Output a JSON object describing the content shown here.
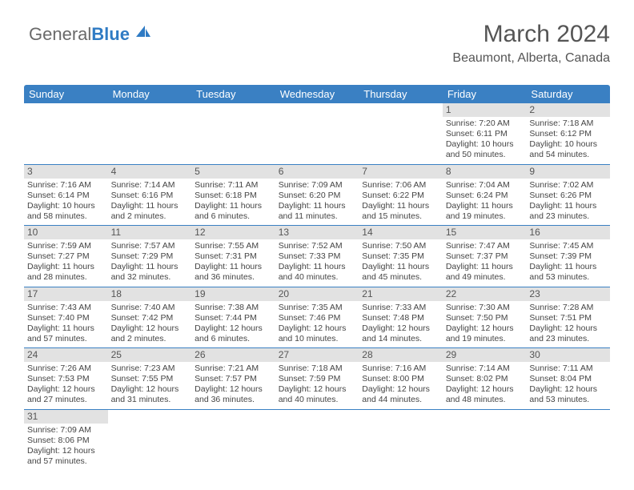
{
  "brand": {
    "part1": "General",
    "part2": "Blue"
  },
  "title": "March 2024",
  "location": "Beaumont, Alberta, Canada",
  "colors": {
    "header_bg": "#3a80c3",
    "header_text": "#ffffff",
    "daynum_bg": "#e2e2e2",
    "rule": "#3a80c3",
    "body_text": "#444444"
  },
  "daynames": [
    "Sunday",
    "Monday",
    "Tuesday",
    "Wednesday",
    "Thursday",
    "Friday",
    "Saturday"
  ],
  "layout": {
    "first_weekday_index": 5,
    "days_in_month": 31
  },
  "days": {
    "1": {
      "sunrise": "Sunrise: 7:20 AM",
      "sunset": "Sunset: 6:11 PM",
      "daylight1": "Daylight: 10 hours",
      "daylight2": "and 50 minutes."
    },
    "2": {
      "sunrise": "Sunrise: 7:18 AM",
      "sunset": "Sunset: 6:12 PM",
      "daylight1": "Daylight: 10 hours",
      "daylight2": "and 54 minutes."
    },
    "3": {
      "sunrise": "Sunrise: 7:16 AM",
      "sunset": "Sunset: 6:14 PM",
      "daylight1": "Daylight: 10 hours",
      "daylight2": "and 58 minutes."
    },
    "4": {
      "sunrise": "Sunrise: 7:14 AM",
      "sunset": "Sunset: 6:16 PM",
      "daylight1": "Daylight: 11 hours",
      "daylight2": "and 2 minutes."
    },
    "5": {
      "sunrise": "Sunrise: 7:11 AM",
      "sunset": "Sunset: 6:18 PM",
      "daylight1": "Daylight: 11 hours",
      "daylight2": "and 6 minutes."
    },
    "6": {
      "sunrise": "Sunrise: 7:09 AM",
      "sunset": "Sunset: 6:20 PM",
      "daylight1": "Daylight: 11 hours",
      "daylight2": "and 11 minutes."
    },
    "7": {
      "sunrise": "Sunrise: 7:06 AM",
      "sunset": "Sunset: 6:22 PM",
      "daylight1": "Daylight: 11 hours",
      "daylight2": "and 15 minutes."
    },
    "8": {
      "sunrise": "Sunrise: 7:04 AM",
      "sunset": "Sunset: 6:24 PM",
      "daylight1": "Daylight: 11 hours",
      "daylight2": "and 19 minutes."
    },
    "9": {
      "sunrise": "Sunrise: 7:02 AM",
      "sunset": "Sunset: 6:26 PM",
      "daylight1": "Daylight: 11 hours",
      "daylight2": "and 23 minutes."
    },
    "10": {
      "sunrise": "Sunrise: 7:59 AM",
      "sunset": "Sunset: 7:27 PM",
      "daylight1": "Daylight: 11 hours",
      "daylight2": "and 28 minutes."
    },
    "11": {
      "sunrise": "Sunrise: 7:57 AM",
      "sunset": "Sunset: 7:29 PM",
      "daylight1": "Daylight: 11 hours",
      "daylight2": "and 32 minutes."
    },
    "12": {
      "sunrise": "Sunrise: 7:55 AM",
      "sunset": "Sunset: 7:31 PM",
      "daylight1": "Daylight: 11 hours",
      "daylight2": "and 36 minutes."
    },
    "13": {
      "sunrise": "Sunrise: 7:52 AM",
      "sunset": "Sunset: 7:33 PM",
      "daylight1": "Daylight: 11 hours",
      "daylight2": "and 40 minutes."
    },
    "14": {
      "sunrise": "Sunrise: 7:50 AM",
      "sunset": "Sunset: 7:35 PM",
      "daylight1": "Daylight: 11 hours",
      "daylight2": "and 45 minutes."
    },
    "15": {
      "sunrise": "Sunrise: 7:47 AM",
      "sunset": "Sunset: 7:37 PM",
      "daylight1": "Daylight: 11 hours",
      "daylight2": "and 49 minutes."
    },
    "16": {
      "sunrise": "Sunrise: 7:45 AM",
      "sunset": "Sunset: 7:39 PM",
      "daylight1": "Daylight: 11 hours",
      "daylight2": "and 53 minutes."
    },
    "17": {
      "sunrise": "Sunrise: 7:43 AM",
      "sunset": "Sunset: 7:40 PM",
      "daylight1": "Daylight: 11 hours",
      "daylight2": "and 57 minutes."
    },
    "18": {
      "sunrise": "Sunrise: 7:40 AM",
      "sunset": "Sunset: 7:42 PM",
      "daylight1": "Daylight: 12 hours",
      "daylight2": "and 2 minutes."
    },
    "19": {
      "sunrise": "Sunrise: 7:38 AM",
      "sunset": "Sunset: 7:44 PM",
      "daylight1": "Daylight: 12 hours",
      "daylight2": "and 6 minutes."
    },
    "20": {
      "sunrise": "Sunrise: 7:35 AM",
      "sunset": "Sunset: 7:46 PM",
      "daylight1": "Daylight: 12 hours",
      "daylight2": "and 10 minutes."
    },
    "21": {
      "sunrise": "Sunrise: 7:33 AM",
      "sunset": "Sunset: 7:48 PM",
      "daylight1": "Daylight: 12 hours",
      "daylight2": "and 14 minutes."
    },
    "22": {
      "sunrise": "Sunrise: 7:30 AM",
      "sunset": "Sunset: 7:50 PM",
      "daylight1": "Daylight: 12 hours",
      "daylight2": "and 19 minutes."
    },
    "23": {
      "sunrise": "Sunrise: 7:28 AM",
      "sunset": "Sunset: 7:51 PM",
      "daylight1": "Daylight: 12 hours",
      "daylight2": "and 23 minutes."
    },
    "24": {
      "sunrise": "Sunrise: 7:26 AM",
      "sunset": "Sunset: 7:53 PM",
      "daylight1": "Daylight: 12 hours",
      "daylight2": "and 27 minutes."
    },
    "25": {
      "sunrise": "Sunrise: 7:23 AM",
      "sunset": "Sunset: 7:55 PM",
      "daylight1": "Daylight: 12 hours",
      "daylight2": "and 31 minutes."
    },
    "26": {
      "sunrise": "Sunrise: 7:21 AM",
      "sunset": "Sunset: 7:57 PM",
      "daylight1": "Daylight: 12 hours",
      "daylight2": "and 36 minutes."
    },
    "27": {
      "sunrise": "Sunrise: 7:18 AM",
      "sunset": "Sunset: 7:59 PM",
      "daylight1": "Daylight: 12 hours",
      "daylight2": "and 40 minutes."
    },
    "28": {
      "sunrise": "Sunrise: 7:16 AM",
      "sunset": "Sunset: 8:00 PM",
      "daylight1": "Daylight: 12 hours",
      "daylight2": "and 44 minutes."
    },
    "29": {
      "sunrise": "Sunrise: 7:14 AM",
      "sunset": "Sunset: 8:02 PM",
      "daylight1": "Daylight: 12 hours",
      "daylight2": "and 48 minutes."
    },
    "30": {
      "sunrise": "Sunrise: 7:11 AM",
      "sunset": "Sunset: 8:04 PM",
      "daylight1": "Daylight: 12 hours",
      "daylight2": "and 53 minutes."
    },
    "31": {
      "sunrise": "Sunrise: 7:09 AM",
      "sunset": "Sunset: 8:06 PM",
      "daylight1": "Daylight: 12 hours",
      "daylight2": "and 57 minutes."
    }
  }
}
